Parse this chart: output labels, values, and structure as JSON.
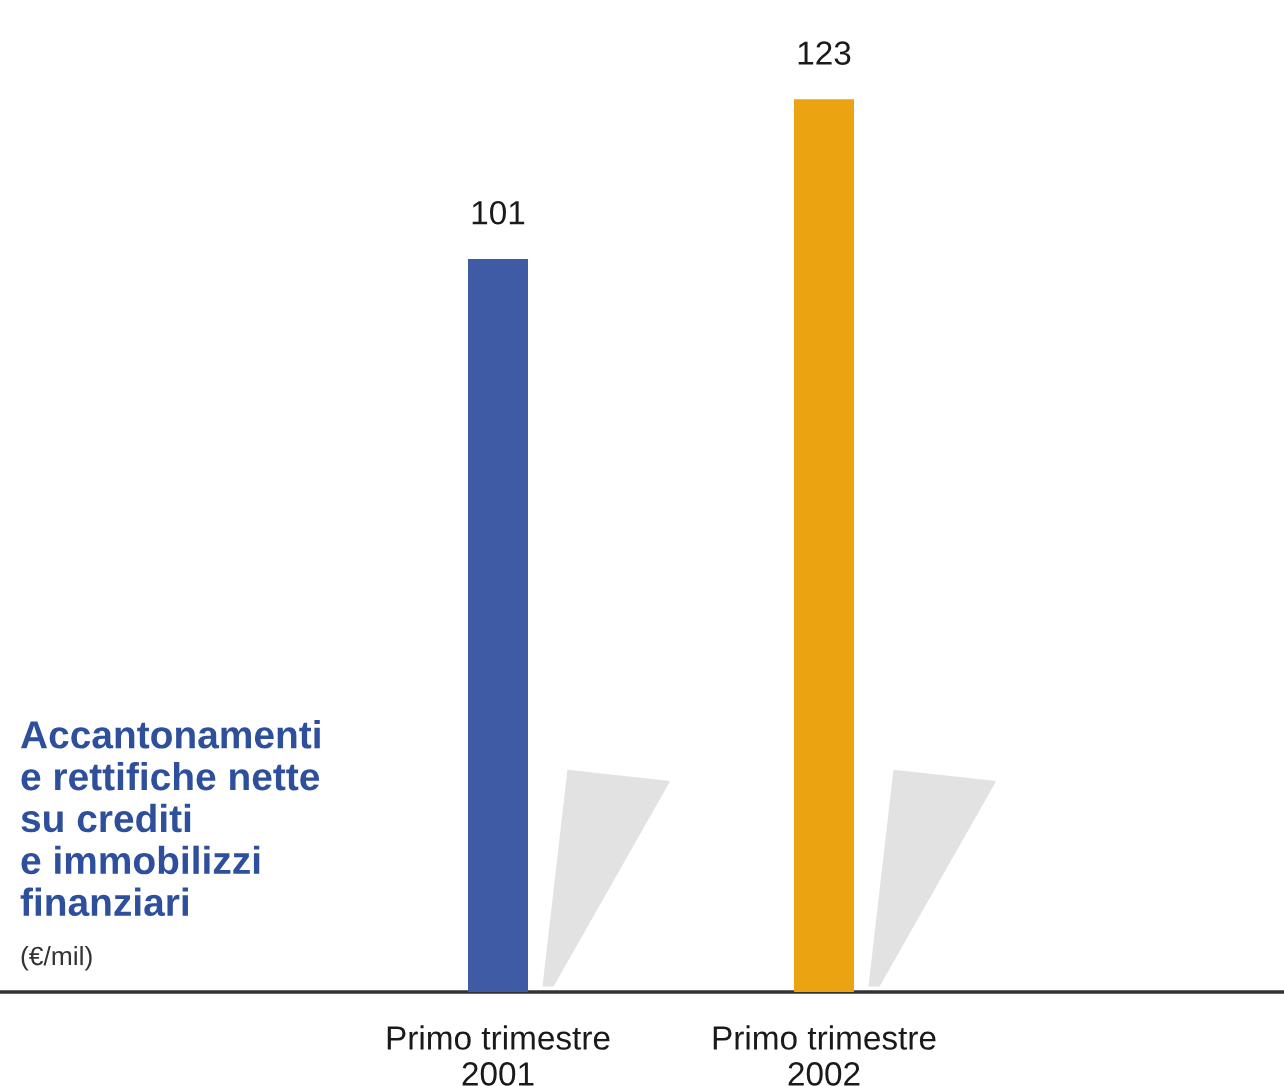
{
  "chart_data": {
    "type": "bar",
    "title": "Accantonamenti\ne rettifiche nette\nsu crediti\ne immobilizzi\nfinanziari",
    "subtitle": "(€/mil)",
    "categories": [
      "Primo trimestre\n2001",
      "Primo trimestre\n2002"
    ],
    "values": [
      101,
      123
    ],
    "colors": [
      "#3f5ba6",
      "#eba312"
    ],
    "data_labels": true,
    "tick_labels": "x"
  }
}
